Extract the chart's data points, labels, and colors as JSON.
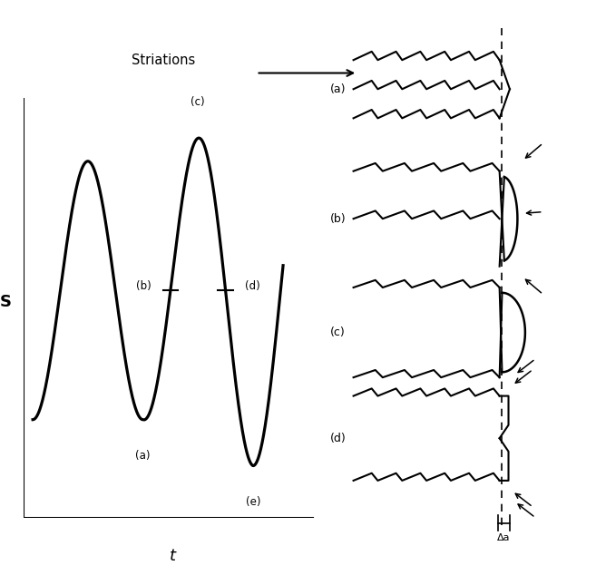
{
  "bg_color": "#ffffff",
  "fig_width": 6.57,
  "fig_height": 6.34,
  "dpi": 100,
  "striations_label": "Striations",
  "s_label": "S",
  "t_label": "t",
  "delta_a_label": "Δa"
}
